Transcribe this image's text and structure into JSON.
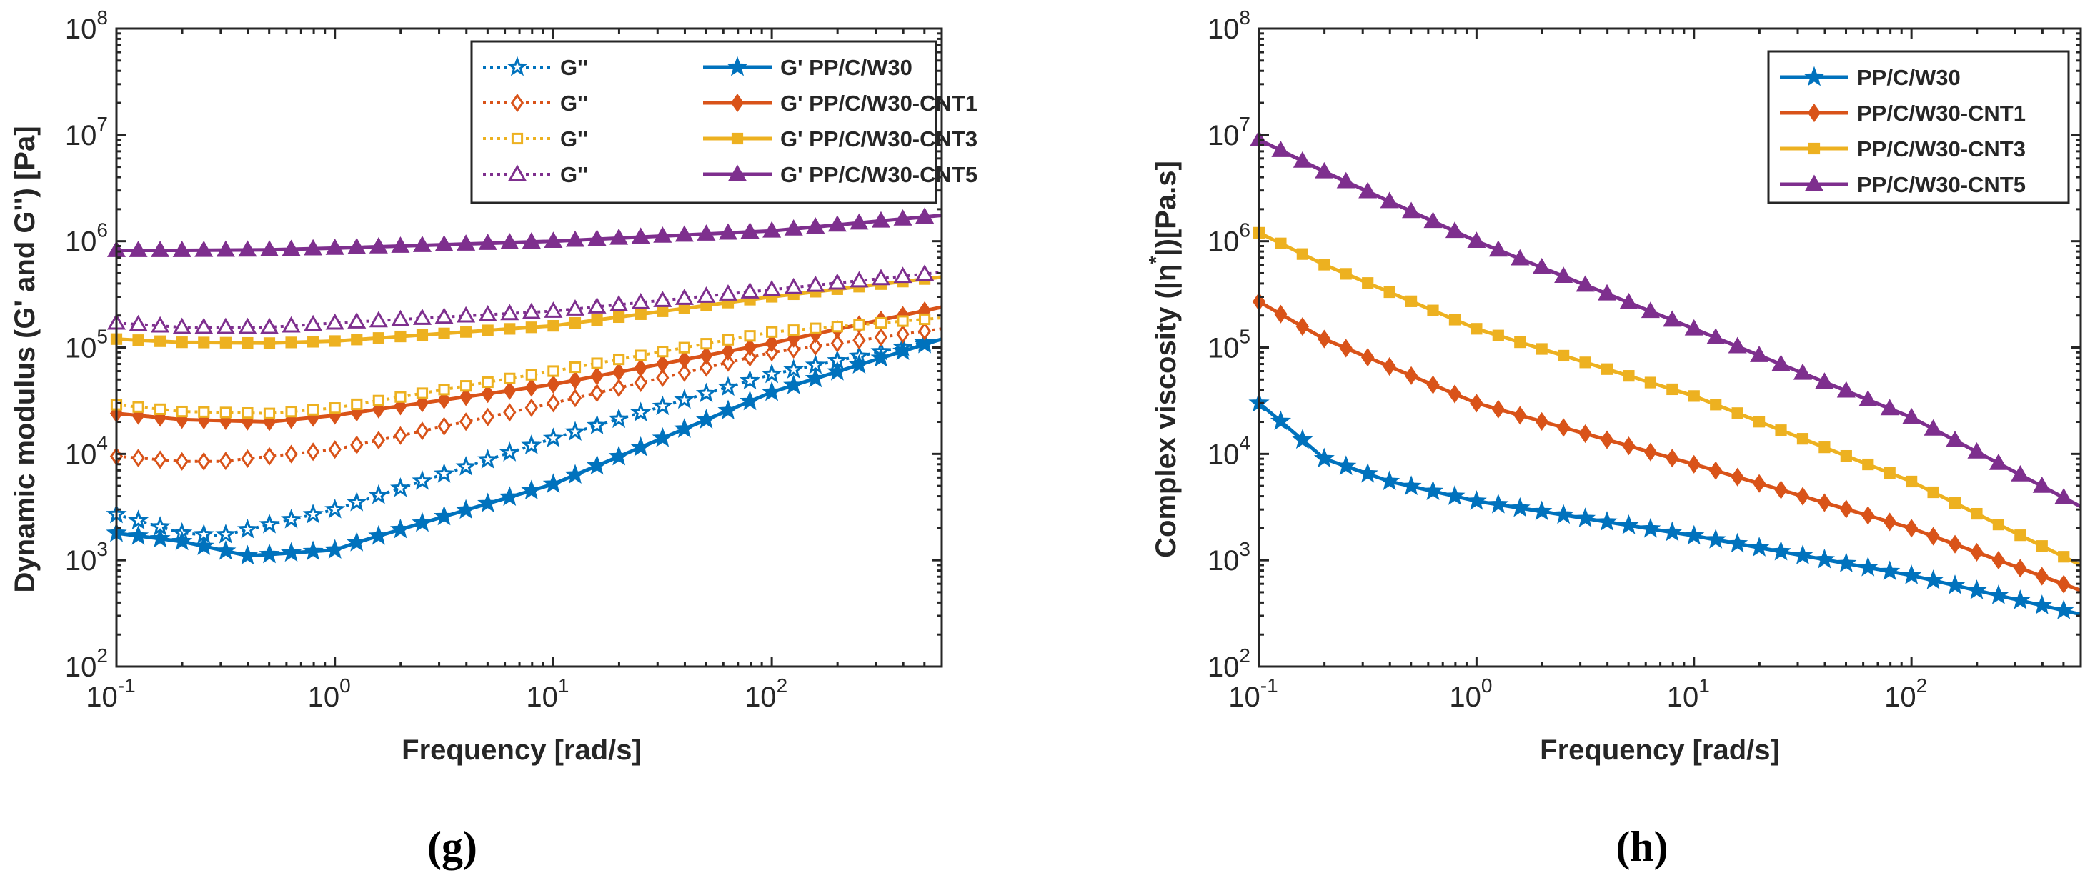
{
  "colors": {
    "blue": "#0072BD",
    "orange": "#D95319",
    "yellow": "#EDB120",
    "purple": "#7E2F8E"
  },
  "panels": [
    {
      "label": "(g)"
    },
    {
      "label": "(h)"
    }
  ],
  "chart_data": [
    {
      "type": "line",
      "panel": "g",
      "xscale": "log",
      "yscale": "log",
      "xlim": [
        0.1,
        600
      ],
      "ylim": [
        100,
        100000000
      ],
      "xlabel": "Frequency [rad/s]",
      "ylabel": "Dynamic modulus (G' and G'') [Pa]",
      "xticks": [
        0.1,
        1,
        10,
        100
      ],
      "yticks": [
        100,
        1000,
        10000,
        100000,
        1000000,
        10000000,
        100000000
      ],
      "legend_location": "top-right",
      "legend_columns": 2,
      "series": [
        {
          "name": "G''",
          "material": "PP/C/W30",
          "color": "blue",
          "marker": "star",
          "filled": false,
          "dotted": true,
          "points": [
            [
              0.1,
              2700
            ],
            [
              0.2,
              1800
            ],
            [
              0.3,
              1700
            ],
            [
              1,
              3000
            ],
            [
              10,
              14000
            ],
            [
              100,
              56000
            ],
            [
              600,
              120000
            ]
          ]
        },
        {
          "name": "G' PP/C/W30",
          "material": "PP/C/W30",
          "color": "blue",
          "marker": "star",
          "filled": true,
          "dotted": false,
          "points": [
            [
              0.1,
              1800
            ],
            [
              0.2,
              1500
            ],
            [
              0.4,
              1100
            ],
            [
              1,
              1250
            ],
            [
              1.3,
              1500
            ],
            [
              10,
              5200
            ],
            [
              100,
              38000
            ],
            [
              600,
              120000
            ]
          ]
        },
        {
          "name": "G''",
          "material": "PP/C/W30-CNT1",
          "color": "orange",
          "marker": "diamond",
          "filled": false,
          "dotted": true,
          "points": [
            [
              0.1,
              9500
            ],
            [
              0.2,
              8500
            ],
            [
              0.3,
              8500
            ],
            [
              1,
              11000
            ],
            [
              10,
              30000
            ],
            [
              100,
              90000
            ],
            [
              600,
              150000
            ]
          ]
        },
        {
          "name": "G' PP/C/W30-CNT1",
          "material": "PP/C/W30-CNT1",
          "color": "orange",
          "marker": "diamond",
          "filled": true,
          "dotted": false,
          "points": [
            [
              0.1,
              24000
            ],
            [
              0.2,
              21000
            ],
            [
              0.5,
              20000
            ],
            [
              1,
              23000
            ],
            [
              10,
              45000
            ],
            [
              100,
              110000
            ],
            [
              600,
              240000
            ]
          ]
        },
        {
          "name": "G''",
          "material": "PP/C/W30-CNT3",
          "color": "yellow",
          "marker": "square",
          "filled": false,
          "dotted": true,
          "points": [
            [
              0.1,
              29000
            ],
            [
              0.2,
              25000
            ],
            [
              0.5,
              24000
            ],
            [
              1,
              27000
            ],
            [
              10,
              60000
            ],
            [
              100,
              140000
            ],
            [
              600,
              190000
            ]
          ]
        },
        {
          "name": "G' PP/C/W30-CNT3",
          "material": "PP/C/W30-CNT3",
          "color": "yellow",
          "marker": "square",
          "filled": true,
          "dotted": false,
          "points": [
            [
              0.1,
              120000
            ],
            [
              0.2,
              112000
            ],
            [
              0.5,
              110000
            ],
            [
              1,
              115000
            ],
            [
              10,
              160000
            ],
            [
              100,
              300000
            ],
            [
              600,
              460000
            ]
          ]
        },
        {
          "name": "G''",
          "material": "PP/C/W30-CNT5",
          "color": "purple",
          "marker": "triangle",
          "filled": false,
          "dotted": true,
          "points": [
            [
              0.1,
              170000
            ],
            [
              0.2,
              155000
            ],
            [
              0.5,
              155000
            ],
            [
              1,
              170000
            ],
            [
              10,
              220000
            ],
            [
              100,
              350000
            ],
            [
              600,
              510000
            ]
          ]
        },
        {
          "name": "G' PP/C/W30-CNT5",
          "material": "PP/C/W30-CNT5",
          "color": "purple",
          "marker": "triangle",
          "filled": true,
          "dotted": false,
          "points": [
            [
              0.1,
              820000
            ],
            [
              0.2,
              820000
            ],
            [
              0.5,
              830000
            ],
            [
              1,
              860000
            ],
            [
              10,
              1000000
            ],
            [
              100,
              1250000
            ],
            [
              600,
              1750000
            ]
          ]
        }
      ]
    },
    {
      "type": "line",
      "panel": "h",
      "xscale": "log",
      "yscale": "log",
      "xlim": [
        0.1,
        600
      ],
      "ylim": [
        100,
        100000000
      ],
      "xlabel": "Frequency [rad/s]",
      "ylabel": "Complex viscosity (|η*|)[Pa.s]",
      "xticks": [
        0.1,
        1,
        10,
        100
      ],
      "yticks": [
        100,
        1000,
        10000,
        100000,
        1000000,
        10000000,
        100000000
      ],
      "legend_location": "top-right",
      "legend_columns": 1,
      "series": [
        {
          "name": "PP/C/W30",
          "color": "blue",
          "marker": "star",
          "filled": true,
          "points": [
            [
              0.1,
              30000
            ],
            [
              0.12,
              22000
            ],
            [
              0.2,
              9000
            ],
            [
              0.4,
              5500
            ],
            [
              1,
              3600
            ],
            [
              10,
              1700
            ],
            [
              100,
              720
            ],
            [
              600,
              310
            ]
          ]
        },
        {
          "name": "PP/C/W30-CNT1",
          "color": "orange",
          "marker": "diamond",
          "filled": true,
          "points": [
            [
              0.1,
              270000
            ],
            [
              0.2,
              120000
            ],
            [
              1,
              30000
            ],
            [
              10,
              8000
            ],
            [
              100,
              2000
            ],
            [
              600,
              520
            ]
          ]
        },
        {
          "name": "PP/C/W30-CNT3",
          "color": "yellow",
          "marker": "square",
          "filled": true,
          "points": [
            [
              0.1,
              1200000
            ],
            [
              0.2,
              600000
            ],
            [
              1,
              150000
            ],
            [
              10,
              35000
            ],
            [
              100,
              5500
            ],
            [
              600,
              900
            ]
          ]
        },
        {
          "name": "PP/C/W30-CNT5",
          "color": "purple",
          "marker": "triangle",
          "filled": true,
          "points": [
            [
              0.1,
              9000000
            ],
            [
              0.2,
              4500000
            ],
            [
              1,
              1000000
            ],
            [
              10,
              150000
            ],
            [
              100,
              22000
            ],
            [
              600,
              3200
            ]
          ]
        }
      ]
    }
  ]
}
